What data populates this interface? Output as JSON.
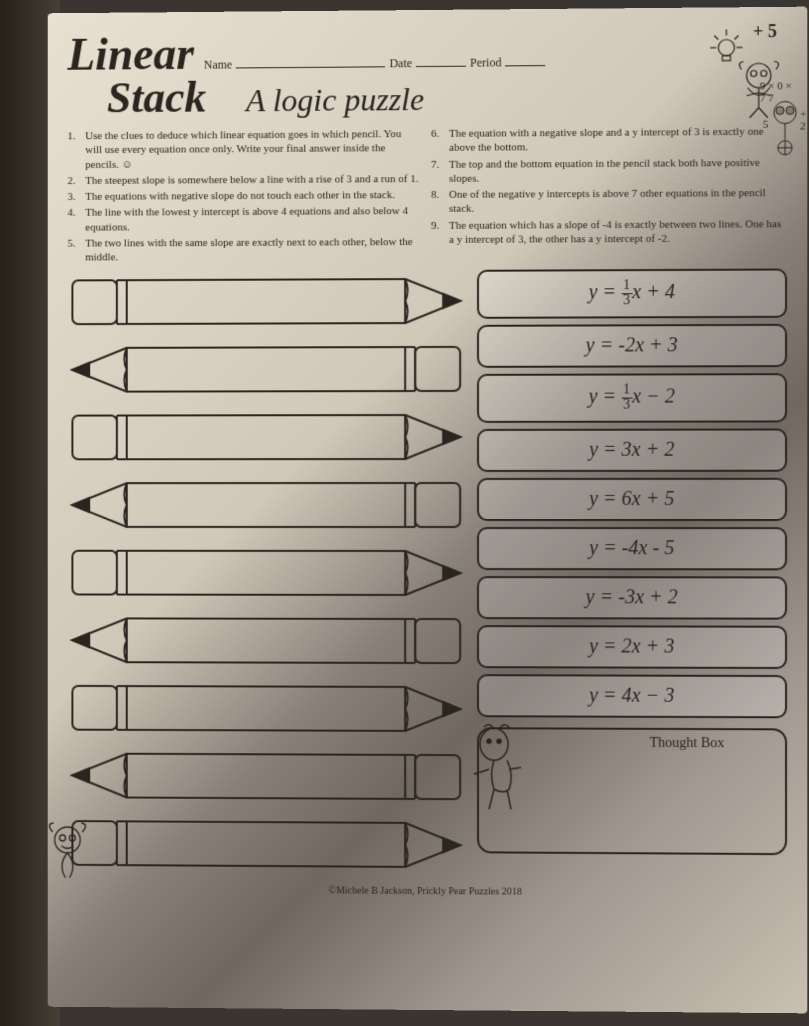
{
  "header": {
    "title_line1": "Linear",
    "title_line2": "Stack",
    "subtitle": "A logic puzzle",
    "name_label": "Name",
    "date_label": "Date",
    "period_label": "Period",
    "corner_mark": "+ 5"
  },
  "clues_left": [
    {
      "n": "1.",
      "t": "Use the clues to deduce which linear equation goes in which pencil. You will use every equation once only. Write your final answer inside the pencils. ☺"
    },
    {
      "n": "2.",
      "t": "The steepest slope is somewhere below a line with a rise of 3 and a run of 1."
    },
    {
      "n": "3.",
      "t": "The equations with negative slope do not touch each other in the stack."
    },
    {
      "n": "4.",
      "t": "The line with the lowest y intercept is above 4 equations and also below 4 equations."
    },
    {
      "n": "5.",
      "t": "The two lines with the same slope are exactly next to each other, below the middle."
    }
  ],
  "clues_right": [
    {
      "n": "6.",
      "t": "The equation with a negative slope and a y intercept of 3 is exactly one above the bottom."
    },
    {
      "n": "7.",
      "t": "The top and the bottom equation in the pencil stack both have positive slopes."
    },
    {
      "n": "8.",
      "t": "One of the negative y intercepts is above 7 other equations in the pencil stack."
    },
    {
      "n": "9.",
      "t": "The equation which has a slope of -4 is exactly between two lines. One has a y intercept of 3, the other has a y intercept of -2."
    }
  ],
  "equations": [
    "y = (1/3)x + 4",
    "y = -2x + 3",
    "y = (1/3)x − 2",
    "y = 3x + 2",
    "y = 6x + 5",
    "y = -4x - 5",
    "y = -3x + 2",
    "y = 2x + 3",
    "y = 4x − 3"
  ],
  "equations_display": [
    {
      "pre": "y = ",
      "frac_n": "1",
      "frac_d": "3",
      "post": "x + 4"
    },
    {
      "pre": "y = -2",
      "post": "x + 3"
    },
    {
      "pre": "y = ",
      "frac_n": "1",
      "frac_d": "3",
      "post": "x − 2"
    },
    {
      "pre": "y = 3",
      "post": "x + 2"
    },
    {
      "pre": "y = 6",
      "post": "x + 5"
    },
    {
      "pre": "y = -4",
      "post": "x - 5"
    },
    {
      "pre": "y = -3",
      "post": "x + 2"
    },
    {
      "pre": "y = 2",
      "post": "x + 3"
    },
    {
      "pre": "y = 4",
      "post": "x − 3"
    }
  ],
  "pencils": {
    "count": 9,
    "directions": [
      "right",
      "left",
      "right",
      "left",
      "right",
      "left",
      "right",
      "left",
      "right"
    ]
  },
  "thought_box_label": "Thought Box",
  "copyright": "©Michele B Jackson, Prickly Pear Puzzles 2018",
  "doodle_text": "9 × 0 ×\n7    7\n5  + 2",
  "colors": {
    "stroke": "#2a2520",
    "page_bg_light": "#e8e0d0",
    "page_bg_dark": "#706860"
  },
  "styling": {
    "title_fontsize": 46,
    "subtitle_fontsize": 32,
    "clue_fontsize": 11,
    "equation_fontsize": 20,
    "pencil_height": 62,
    "eq_border_radius": 10,
    "line_width": 2
  }
}
